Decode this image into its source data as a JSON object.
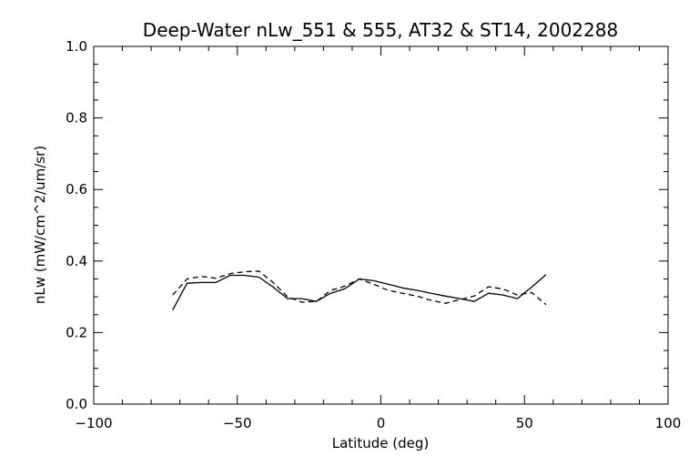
{
  "chart_data": {
    "type": "line",
    "title": "Deep-Water nLw_551 & 555, AT32 & ST14, 2002288",
    "xlabel": "Latitude (deg)",
    "ylabel": "nLw (mW/cm^2/um/sr)",
    "xlim": [
      -100,
      100
    ],
    "ylim": [
      0.0,
      1.0
    ],
    "x_ticks": [
      -100,
      -50,
      0,
      50,
      100
    ],
    "y_ticks": [
      0.0,
      0.2,
      0.4,
      0.6,
      0.8,
      1.0
    ],
    "x_tick_labels": [
      "−100",
      "−50",
      "0",
      "50",
      "100"
    ],
    "y_tick_labels": [
      "0.0",
      "0.2",
      "0.4",
      "0.6",
      "0.8",
      "1.0"
    ],
    "grid": false,
    "series": [
      {
        "style": "solid",
        "color": "#000000",
        "x": [
          -72.5,
          -67.5,
          -62.5,
          -57.5,
          -52.5,
          -47.5,
          -42.5,
          -37.5,
          -32.5,
          -27.5,
          -22.5,
          -17.5,
          -12.5,
          -7.5,
          -2.5,
          2.5,
          7.5,
          12.5,
          17.5,
          22.5,
          27.5,
          32.5,
          37.5,
          42.5,
          47.5,
          52.5,
          57.5
        ],
        "values": [
          0.263,
          0.338,
          0.34,
          0.34,
          0.36,
          0.36,
          0.355,
          0.327,
          0.295,
          0.295,
          0.287,
          0.31,
          0.323,
          0.35,
          0.345,
          0.335,
          0.325,
          0.318,
          0.31,
          0.302,
          0.295,
          0.287,
          0.31,
          0.305,
          0.295,
          0.327,
          0.362
        ]
      },
      {
        "style": "dashed",
        "color": "#000000",
        "x": [
          -72.5,
          -67.5,
          -62.5,
          -57.5,
          -52.5,
          -47.5,
          -42.5,
          -37.5,
          -32.5,
          -27.5,
          -22.5,
          -17.5,
          -12.5,
          -7.5,
          -2.5,
          2.5,
          7.5,
          12.5,
          17.5,
          22.5,
          27.5,
          32.5,
          37.5,
          42.5,
          47.5,
          52.5,
          57.5
        ],
        "values": [
          0.305,
          0.35,
          0.357,
          0.352,
          0.365,
          0.37,
          0.372,
          0.34,
          0.3,
          0.285,
          0.287,
          0.318,
          0.33,
          0.35,
          0.335,
          0.318,
          0.31,
          0.302,
          0.29,
          0.282,
          0.292,
          0.302,
          0.328,
          0.322,
          0.305,
          0.312,
          0.278
        ]
      }
    ]
  }
}
